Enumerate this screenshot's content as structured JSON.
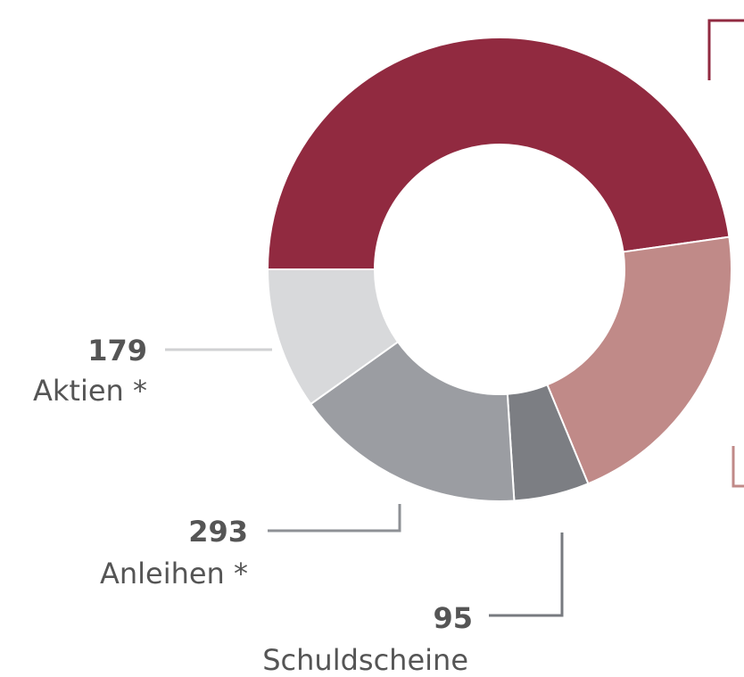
{
  "chart_data": {
    "type": "donut",
    "categories": [
      null,
      null,
      "Schuldscheine",
      "Anleihen *",
      "Aktien *"
    ],
    "values": [
      867,
      381,
      95,
      293,
      179
    ],
    "colors": [
      "#912a40",
      "#c08a88",
      "#7c7e83",
      "#9b9da2",
      "#d8d9db"
    ]
  }
}
